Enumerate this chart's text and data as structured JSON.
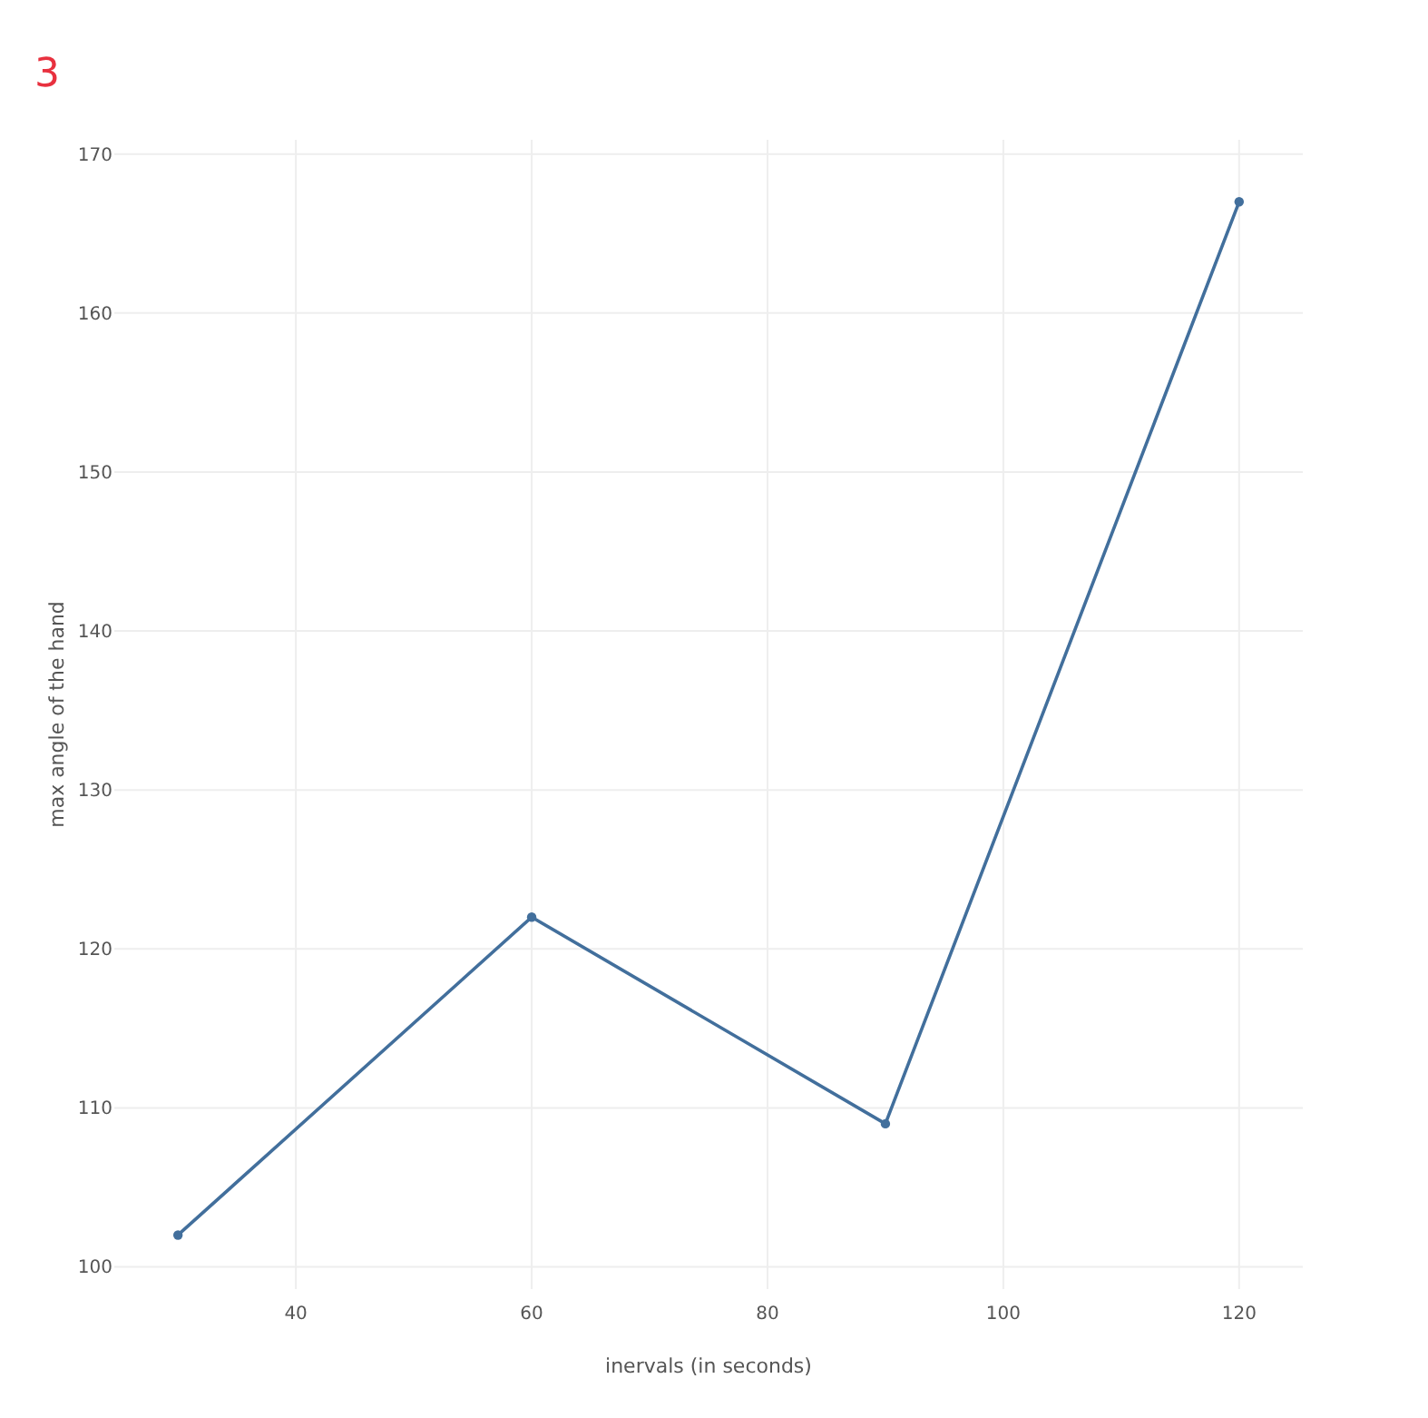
{
  "chart_data": {
    "type": "line",
    "xlabel": "inervals (in seconds)",
    "ylabel": "max angle of the hand",
    "annotations": [
      "3"
    ],
    "x": [
      30,
      60,
      90,
      120
    ],
    "series": [
      {
        "color": "#426f9c",
        "values": [
          102,
          122,
          109,
          167
        ]
      }
    ],
    "xlim": [
      24.6,
      125.4
    ],
    "xticks": [
      40,
      60,
      80,
      100,
      120
    ],
    "ylim": [
      98.6,
      170.9
    ],
    "yticks": [
      100,
      110,
      120,
      130,
      140,
      150,
      160,
      170
    ],
    "grid": true,
    "marker": "circle",
    "line_style": "solid"
  }
}
